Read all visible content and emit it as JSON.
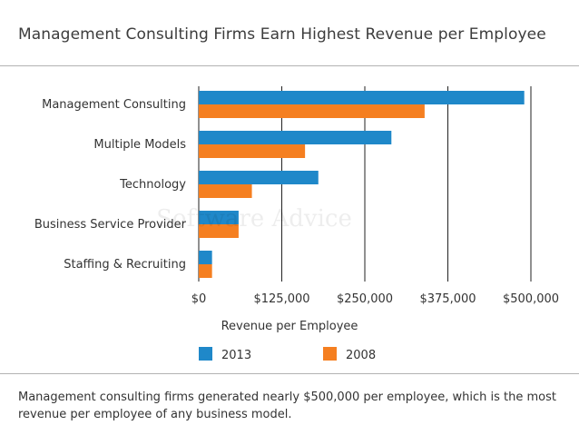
{
  "chart_data": {
    "type": "bar",
    "orientation": "horizontal",
    "title": "Management Consulting Firms Earn Highest Revenue per Employee",
    "categories": [
      "Management Consulting",
      "Multiple Models",
      "Technology",
      "Business Service Provider",
      "Staffing & Recruiting"
    ],
    "series": [
      {
        "name": "2013",
        "color": "#1f88c9",
        "values": [
          490000,
          290000,
          180000,
          60000,
          20000
        ]
      },
      {
        "name": "2008",
        "color": "#f57f20",
        "values": [
          340000,
          160000,
          80000,
          60000,
          20000
        ]
      }
    ],
    "xlabel": "Revenue per Employee",
    "ylabel": "",
    "xlim": [
      0,
      500000
    ],
    "xticks": [
      0,
      125000,
      250000,
      375000,
      500000
    ],
    "xtick_labels": [
      "$0",
      "$125,000",
      "$250,000",
      "$375,000",
      "$500,000"
    ],
    "grid": "vertical",
    "legend": "bottom"
  },
  "watermark": "Software Advice",
  "caption": "Management consulting firms generated nearly $500,000 per employee, which is the most revenue per employee of any business model."
}
